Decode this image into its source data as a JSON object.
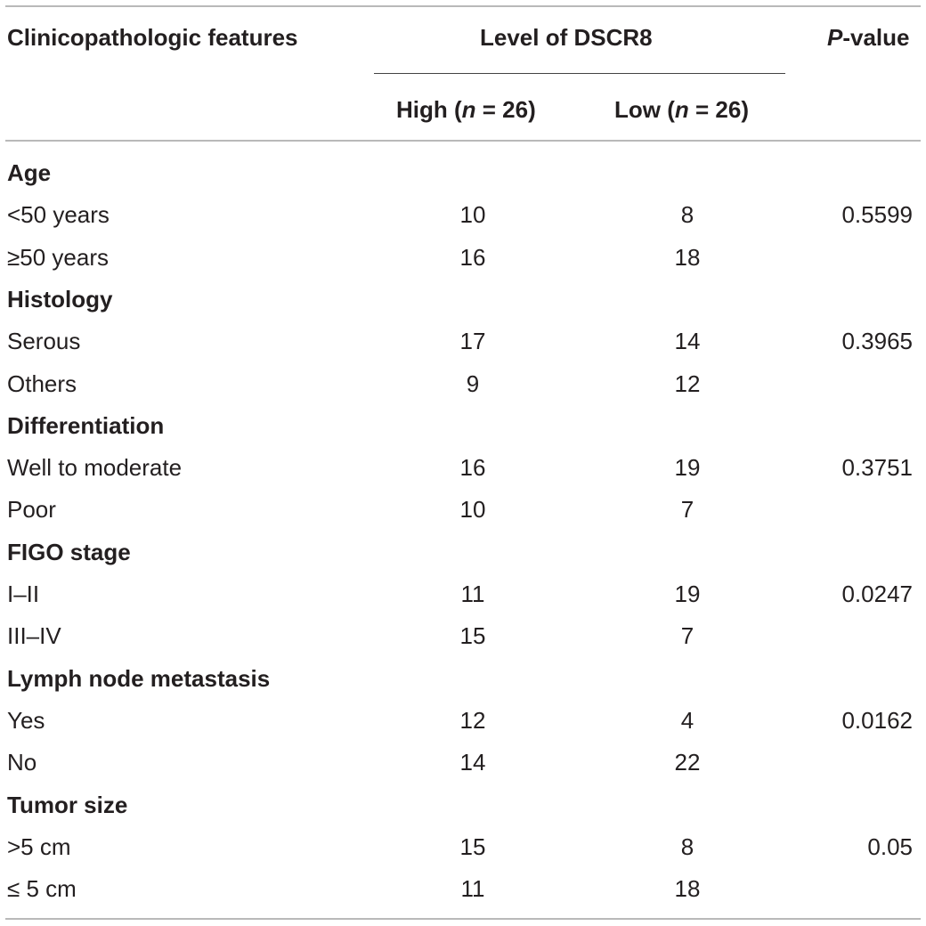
{
  "table": {
    "header": {
      "feature": "Clinicopathologic features",
      "level": "Level of DSCR8",
      "pvalue_italic": "P",
      "pvalue_rest": "-value",
      "high_pre": "High (",
      "high_n": "n",
      "high_post": " = 26)",
      "low_pre": "Low (",
      "low_n": "n",
      "low_post": " = 26)"
    },
    "rows": [
      {
        "label": "Age",
        "section": true,
        "high": "",
        "low": "",
        "p": ""
      },
      {
        "label": "<50 years",
        "section": false,
        "high": "10",
        "low": "8",
        "p": "0.5599"
      },
      {
        "label": "≥50 years",
        "section": false,
        "high": "16",
        "low": "18",
        "p": ""
      },
      {
        "label": "Histology",
        "section": true,
        "high": "",
        "low": "",
        "p": ""
      },
      {
        "label": "Serous",
        "section": false,
        "high": "17",
        "low": "14",
        "p": "0.3965"
      },
      {
        "label": "Others",
        "section": false,
        "high": "9",
        "low": "12",
        "p": ""
      },
      {
        "label": "Differentiation",
        "section": true,
        "high": "",
        "low": "",
        "p": ""
      },
      {
        "label": "Well to moderate",
        "section": false,
        "high": "16",
        "low": "19",
        "p": "0.3751"
      },
      {
        "label": "Poor",
        "section": false,
        "high": "10",
        "low": "7",
        "p": ""
      },
      {
        "label": "FIGO stage",
        "section": true,
        "high": "",
        "low": "",
        "p": ""
      },
      {
        "label": "I–II",
        "section": false,
        "high": "11",
        "low": "19",
        "p": "0.0247"
      },
      {
        "label": "III–IV",
        "section": false,
        "high": "15",
        "low": "7",
        "p": ""
      },
      {
        "label": "Lymph node metastasis",
        "section": true,
        "high": "",
        "low": "",
        "p": ""
      },
      {
        "label": "Yes",
        "section": false,
        "high": "12",
        "low": "4",
        "p": "0.0162"
      },
      {
        "label": "No",
        "section": false,
        "high": "14",
        "low": "22",
        "p": ""
      },
      {
        "label": "Tumor size",
        "section": true,
        "high": "",
        "low": "",
        "p": ""
      },
      {
        "label": ">5 cm",
        "section": false,
        "high": "15",
        "low": "8",
        "p": "0.05"
      },
      {
        "label": "≤ 5 cm",
        "section": false,
        "high": "11",
        "low": "18",
        "p": ""
      }
    ]
  }
}
